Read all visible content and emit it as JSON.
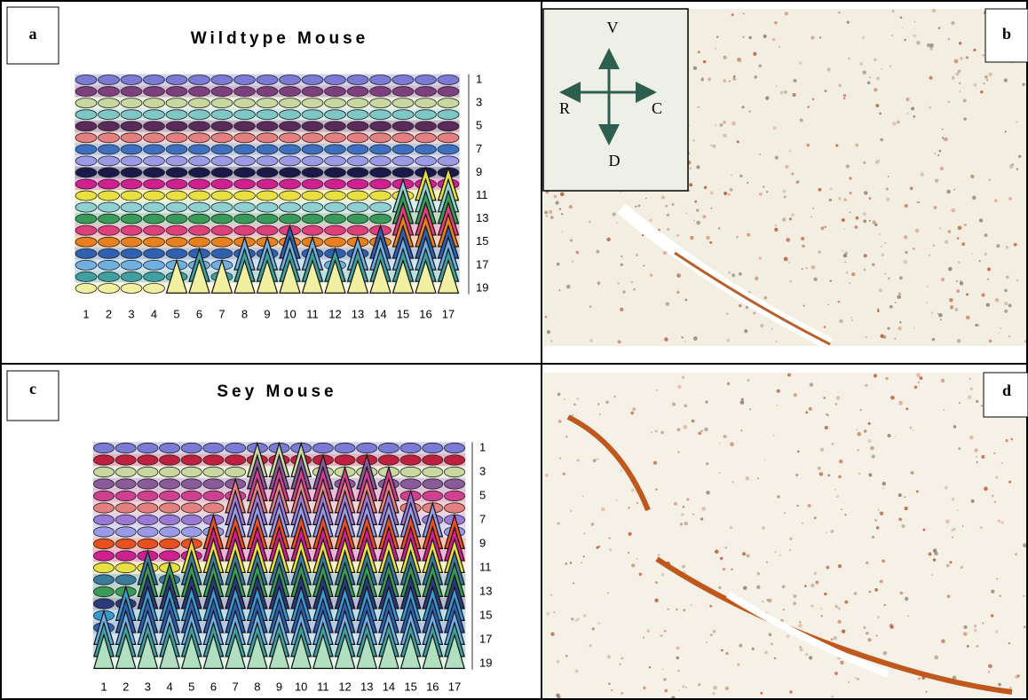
{
  "panels": [
    {
      "label": "a",
      "title": "Wildtype Mouse",
      "chart": {
        "type": "cone3d",
        "x_labels": [
          "1",
          "2",
          "3",
          "4",
          "5",
          "6",
          "7",
          "8",
          "9",
          "10",
          "11",
          "12",
          "13",
          "14",
          "15",
          "16",
          "17"
        ],
        "y_labels": [
          "1",
          "3",
          "5",
          "7",
          "9",
          "11",
          "13",
          "15",
          "17",
          "19"
        ],
        "peaks": [
          0,
          0,
          0,
          0,
          1,
          2,
          1,
          3,
          3,
          4,
          3,
          2,
          3,
          4,
          8,
          9,
          9
        ],
        "row_colors": [
          "#7b7bd6",
          "#7d3f7d",
          "#c8d8a0",
          "#7fc7c7",
          "#5a2a5a",
          "#e58080",
          "#3f6fbf",
          "#9a9ae6",
          "#1a1a4a",
          "#d02090",
          "#e8e040",
          "#8fd0d0",
          "#3a9a5a",
          "#e0407a",
          "#e88020",
          "#3060b0",
          "#70b0e0",
          "#40a0a0",
          "#f0f0a0"
        ]
      }
    },
    {
      "label": "b",
      "compass": {
        "up": "V",
        "left": "R",
        "right": "C",
        "down": "D"
      }
    },
    {
      "label": "c",
      "title": "Sey Mouse",
      "chart": {
        "type": "cone3d",
        "x_labels": [
          "1",
          "2",
          "3",
          "4",
          "5",
          "6",
          "7",
          "8",
          "9",
          "10",
          "11",
          "12",
          "13",
          "14",
          "15",
          "16",
          "17"
        ],
        "y_labels": [
          "1",
          "3",
          "5",
          "7",
          "9",
          "11",
          "13",
          "15",
          "17",
          "19"
        ],
        "peaks": [
          3,
          5,
          8,
          7,
          9,
          11,
          14,
          17,
          17,
          17,
          16,
          15,
          16,
          15,
          13,
          12,
          11
        ],
        "row_colors": [
          "#7b7bd6",
          "#c02040",
          "#c8d8a0",
          "#8a5a9a",
          "#d04090",
          "#e58080",
          "#9a7ad6",
          "#9a9ae6",
          "#e85020",
          "#d02090",
          "#e8e040",
          "#3a7a9a",
          "#3a9a5a",
          "#2a3a7a",
          "#3a9ad0",
          "#3060b0",
          "#70b0e0",
          "#40a0a0",
          "#b0e0c0"
        ]
      }
    },
    {
      "label": "d"
    }
  ]
}
